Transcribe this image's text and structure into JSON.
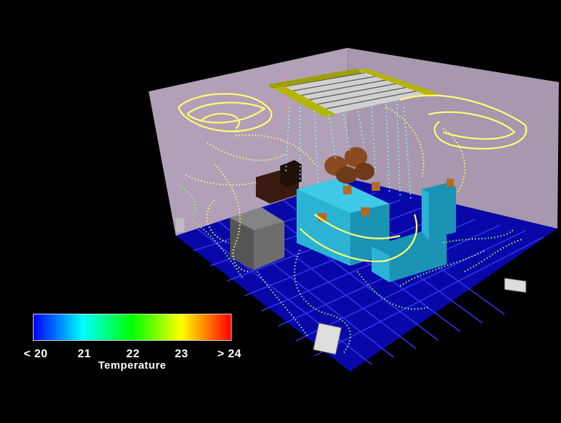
{
  "legend": {
    "title": "Temperature",
    "ticks": [
      "< 20",
      "21",
      "22",
      "23",
      "> 24"
    ],
    "gradient": [
      "#0000ff",
      "#00ffff",
      "#00ff00",
      "#ffff00",
      "#ff0000"
    ]
  },
  "colors": {
    "background": "#000000",
    "walls": "#b8a8bf",
    "floor": "#0a0ab0",
    "floor_grid": "#3b3bff",
    "racks": "#22a8c8",
    "ceiling_vent_frame": "#b8b800",
    "streamline_warm": "#ffff66",
    "streamline_mid": "#88ff66",
    "streamline_cool": "#66ffff"
  }
}
